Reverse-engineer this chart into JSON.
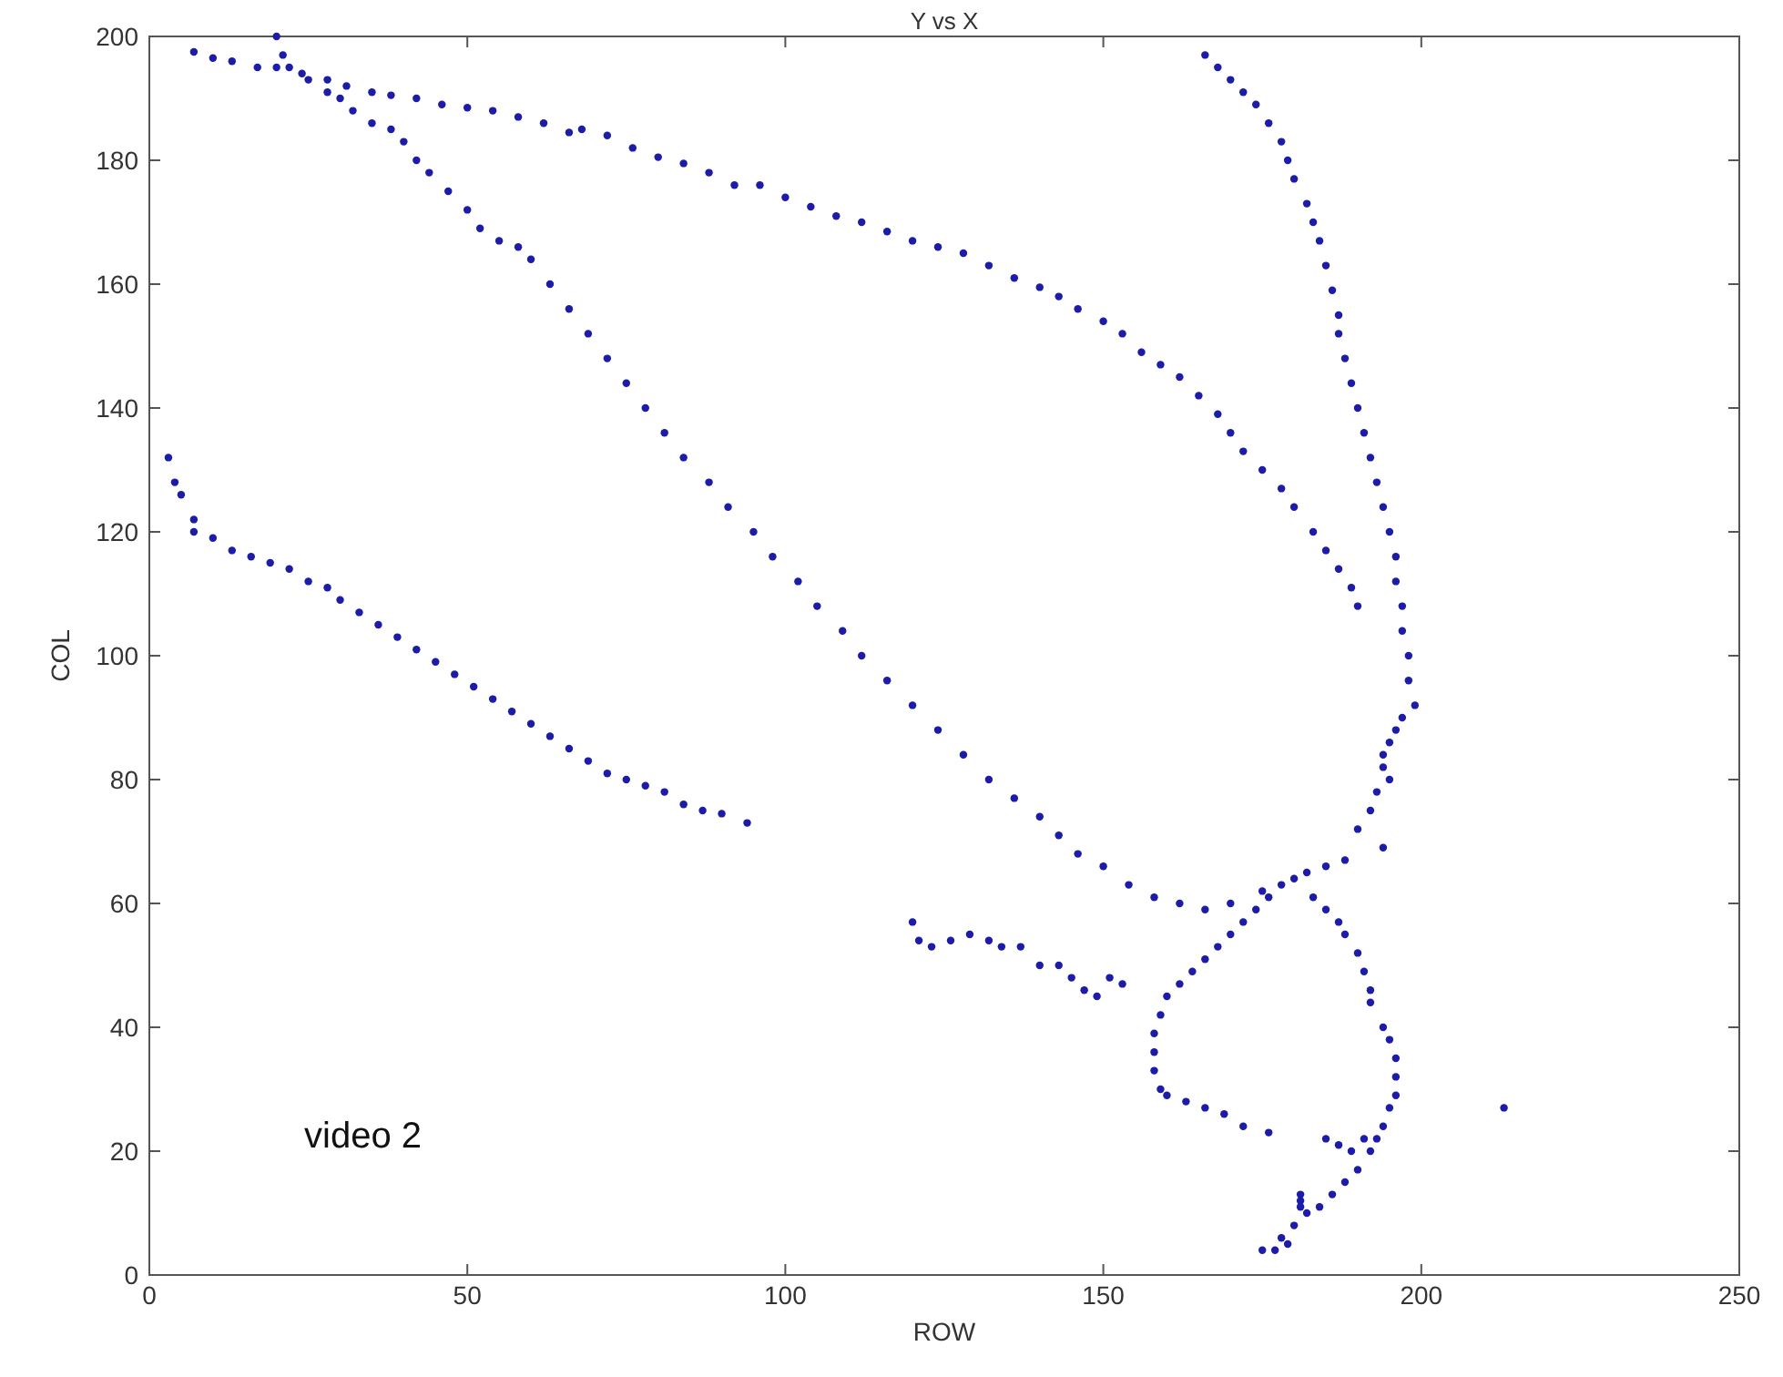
{
  "chart_data": {
    "type": "scatter",
    "title": "Y vs X",
    "xlabel": "ROW",
    "ylabel": "COL",
    "annotations": [
      "video 2"
    ],
    "xlim": [
      0,
      250
    ],
    "ylim": [
      0,
      200
    ],
    "xticks": [
      0,
      50,
      100,
      150,
      200,
      250
    ],
    "yticks": [
      0,
      20,
      40,
      60,
      80,
      100,
      120,
      140,
      160,
      180,
      200
    ],
    "grid": false,
    "marker": "circle",
    "series": [
      {
        "color": "#1c1ca8",
        "x": [
          7,
          10,
          13,
          17,
          20,
          24,
          28,
          31,
          35,
          38,
          42,
          46,
          50,
          54,
          58,
          62,
          66,
          68,
          72,
          76,
          80,
          84,
          88,
          92,
          96,
          100,
          104,
          108,
          112,
          116,
          120,
          124,
          128,
          132,
          136,
          140,
          143,
          146,
          150,
          153,
          156,
          159,
          162,
          165,
          168,
          170,
          172,
          175,
          178,
          180,
          183,
          185,
          187,
          189,
          190,
          20,
          21,
          22,
          25,
          28,
          30,
          32,
          35,
          38,
          40,
          42,
          44,
          47,
          50,
          52,
          55,
          58,
          60,
          63,
          66,
          69,
          72,
          75,
          78,
          81,
          84,
          88,
          91,
          95,
          98,
          102,
          105,
          109,
          112,
          116,
          120,
          124,
          128,
          132,
          136,
          140,
          143,
          146,
          150,
          154,
          158,
          162,
          166,
          170,
          175,
          3,
          4,
          5,
          7,
          7,
          10,
          13,
          16,
          19,
          22,
          25,
          28,
          30,
          33,
          36,
          39,
          42,
          45,
          48,
          51,
          54,
          57,
          60,
          63,
          66,
          69,
          72,
          75,
          78,
          81,
          84,
          87,
          90,
          94,
          166,
          168,
          170,
          172,
          174,
          176,
          178,
          179,
          180,
          182,
          183,
          184,
          185,
          186,
          187,
          187,
          188,
          189,
          190,
          191,
          192,
          193,
          194,
          195,
          196,
          196,
          197,
          197,
          198,
          198,
          199,
          197,
          196,
          195,
          194,
          194,
          195,
          193,
          192,
          190,
          194,
          188,
          185,
          182,
          180,
          178,
          176,
          174,
          172,
          170,
          168,
          166,
          164,
          162,
          160,
          159,
          158,
          158,
          158,
          159,
          160,
          163,
          166,
          169,
          172,
          176,
          120,
          121,
          123,
          126,
          129,
          132,
          134,
          137,
          140,
          143,
          145,
          147,
          149,
          151,
          153,
          183,
          185,
          187,
          188,
          190,
          191,
          192,
          192,
          194,
          195,
          196,
          196,
          196,
          195,
          194,
          193,
          192,
          190,
          188,
          186,
          184,
          182,
          180,
          178,
          175,
          177,
          179,
          181,
          181,
          181,
          185,
          187,
          189,
          191,
          213
        ],
        "values": [
          197.5,
          196.5,
          196,
          195,
          195,
          194,
          193,
          192,
          191,
          190.5,
          190,
          189,
          188.5,
          188,
          187,
          186,
          184.5,
          185,
          184,
          182,
          180.5,
          179.5,
          178,
          176,
          176,
          174,
          172.5,
          171,
          170,
          168.5,
          167,
          166,
          165,
          163,
          161,
          159.5,
          158,
          156,
          154,
          152,
          149,
          147,
          145,
          142,
          139,
          136,
          133,
          130,
          127,
          124,
          120,
          117,
          114,
          111,
          108,
          200,
          197,
          195,
          193,
          191,
          190,
          188,
          186,
          185,
          183,
          180,
          178,
          175,
          172,
          169,
          167,
          166,
          164,
          160,
          156,
          152,
          148,
          144,
          140,
          136,
          132,
          128,
          124,
          120,
          116,
          112,
          108,
          104,
          100,
          96,
          92,
          88,
          84,
          80,
          77,
          74,
          71,
          68,
          66,
          63,
          61,
          60,
          59,
          60,
          62,
          132,
          128,
          126,
          122,
          120,
          119,
          117,
          116,
          115,
          114,
          112,
          111,
          109,
          107,
          105,
          103,
          101,
          99,
          97,
          95,
          93,
          91,
          89,
          87,
          85,
          83,
          81,
          80,
          79,
          78,
          76,
          75,
          74.5,
          73,
          197,
          195,
          193,
          191,
          189,
          186,
          183,
          180,
          177,
          173,
          170,
          167,
          163,
          159,
          155,
          152,
          148,
          144,
          140,
          136,
          132,
          128,
          124,
          120,
          116,
          112,
          108,
          104,
          100,
          96,
          92,
          90,
          88,
          86,
          84,
          82,
          80,
          78,
          75,
          72,
          69,
          67,
          66,
          65,
          64,
          63,
          61,
          59,
          57,
          55,
          53,
          51,
          49,
          47,
          45,
          42,
          39,
          36,
          33,
          30,
          29,
          28,
          27,
          26,
          24,
          23,
          57,
          54,
          53,
          54,
          55,
          54,
          53,
          53,
          50,
          50,
          48,
          46,
          45,
          48,
          47,
          61,
          59,
          57,
          55,
          52,
          49,
          46,
          44,
          40,
          38,
          35,
          32,
          29,
          27,
          24,
          22,
          20,
          17,
          15,
          13,
          11,
          10,
          8,
          6,
          4,
          4,
          5,
          12,
          13,
          11,
          22,
          21,
          20,
          22,
          27
        ]
      }
    ]
  }
}
